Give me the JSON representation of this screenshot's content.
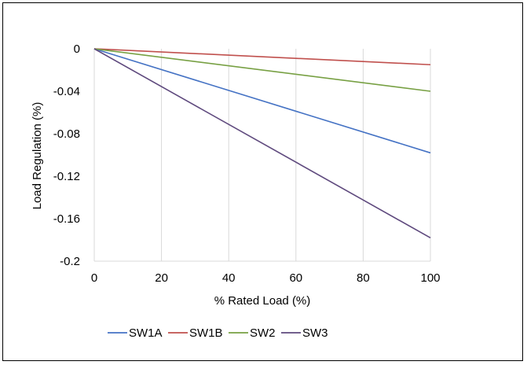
{
  "chart_data": {
    "type": "line",
    "xlabel": "% Rated Load (%)",
    "ylabel": "Load Regulation (%)",
    "xlim": [
      0,
      100
    ],
    "ylim": [
      -0.2,
      0
    ],
    "x_ticks": [
      0,
      20,
      40,
      60,
      80,
      100
    ],
    "y_ticks": [
      0,
      -0.04,
      -0.08,
      -0.12,
      -0.16,
      -0.2
    ],
    "x_tick_labels": [
      "0",
      "20",
      "40",
      "60",
      "80",
      "100"
    ],
    "y_tick_labels": [
      "0",
      "-0.04",
      "-0.08",
      "-0.12",
      "-0.16",
      "-0.2"
    ],
    "grid": "vertical",
    "legend_position": "bottom",
    "series": [
      {
        "name": "SW1A",
        "color": "#4472C4",
        "x": [
          0,
          100
        ],
        "y": [
          0,
          -0.098
        ]
      },
      {
        "name": "SW1B",
        "color": "#C0504D",
        "x": [
          0,
          100
        ],
        "y": [
          0,
          -0.015
        ]
      },
      {
        "name": "SW2",
        "color": "#77A043",
        "x": [
          0,
          100
        ],
        "y": [
          0,
          -0.04
        ]
      },
      {
        "name": "SW3",
        "color": "#5F4A7E",
        "x": [
          0,
          100
        ],
        "y": [
          0,
          -0.178
        ]
      }
    ]
  }
}
